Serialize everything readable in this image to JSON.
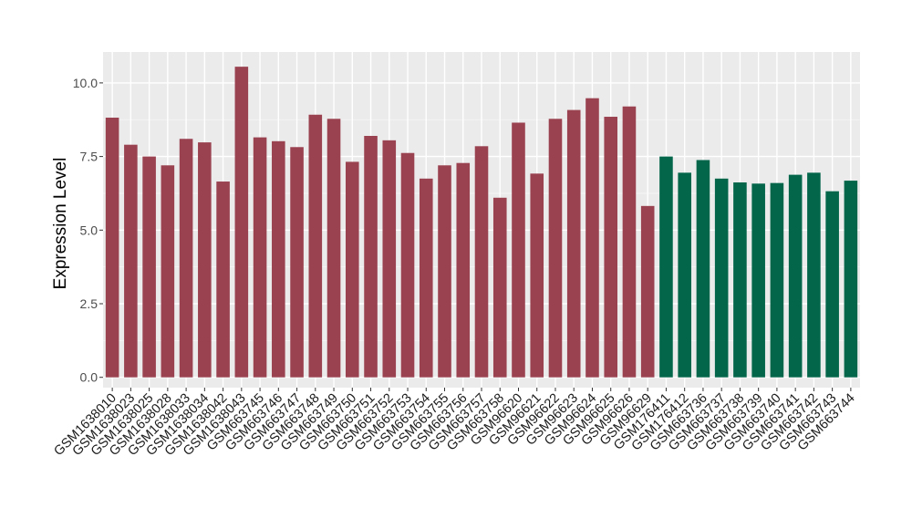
{
  "chart_data": {
    "type": "bar",
    "title": "",
    "xlabel": "",
    "ylabel": "Expression Level",
    "ylim": [
      -0.35,
      11.05
    ],
    "yticks": [
      0.0,
      2.5,
      5.0,
      7.5,
      10.0
    ],
    "ytick_labels": [
      "0.0",
      "2.5",
      "5.0",
      "7.5",
      "10.0"
    ],
    "grid": true,
    "legend": "none",
    "panel_background": "#ebebeb",
    "categories": [
      "GSM1638010",
      "GSM1638023",
      "GSM1638025",
      "GSM1638028",
      "GSM1638033",
      "GSM1638034",
      "GSM1638042",
      "GSM1638043",
      "GSM663745",
      "GSM663746",
      "GSM663747",
      "GSM663748",
      "GSM663749",
      "GSM663750",
      "GSM663751",
      "GSM663752",
      "GSM663753",
      "GSM663754",
      "GSM663755",
      "GSM663756",
      "GSM663757",
      "GSM663758",
      "GSM96620",
      "GSM96621",
      "GSM96622",
      "GSM96623",
      "GSM96624",
      "GSM96625",
      "GSM96626",
      "GSM96629",
      "GSM176411",
      "GSM176412",
      "GSM663736",
      "GSM663737",
      "GSM663738",
      "GSM663739",
      "GSM663740",
      "GSM663741",
      "GSM663742",
      "GSM663743",
      "GSM663744"
    ],
    "values": [
      8.82,
      7.9,
      7.5,
      7.2,
      8.1,
      7.98,
      6.65,
      10.55,
      8.15,
      8.02,
      7.82,
      8.92,
      8.78,
      7.32,
      8.2,
      8.05,
      7.62,
      6.75,
      7.2,
      7.28,
      7.85,
      6.1,
      8.65,
      6.92,
      8.78,
      9.08,
      9.48,
      8.85,
      9.2,
      5.82,
      7.5,
      6.95,
      7.38,
      6.75,
      6.62,
      6.58,
      6.6,
      6.88,
      6.95,
      6.32,
      6.68
    ],
    "bar_colors": [
      "#9a4250",
      "#9a4250",
      "#9a4250",
      "#9a4250",
      "#9a4250",
      "#9a4250",
      "#9a4250",
      "#9a4250",
      "#9a4250",
      "#9a4250",
      "#9a4250",
      "#9a4250",
      "#9a4250",
      "#9a4250",
      "#9a4250",
      "#9a4250",
      "#9a4250",
      "#9a4250",
      "#9a4250",
      "#9a4250",
      "#9a4250",
      "#9a4250",
      "#9a4250",
      "#9a4250",
      "#9a4250",
      "#9a4250",
      "#9a4250",
      "#9a4250",
      "#9a4250",
      "#9a4250",
      "#03664a",
      "#03664a",
      "#03664a",
      "#03664a",
      "#03664a",
      "#03664a",
      "#03664a",
      "#03664a",
      "#03664a",
      "#03664a",
      "#03664a"
    ]
  }
}
